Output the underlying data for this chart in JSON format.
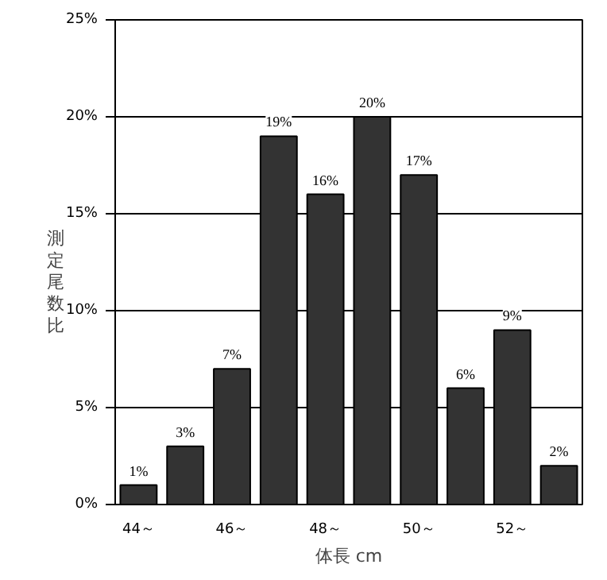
{
  "chart_data": {
    "type": "bar",
    "xlabel": "体長 cm",
    "ylabel": "測定尾数比",
    "categories": [
      "44～",
      null,
      "46～",
      null,
      "48～",
      null,
      "50～",
      null,
      "52～",
      null
    ],
    "values": [
      1,
      3,
      7,
      19,
      16,
      20,
      17,
      6,
      9,
      2
    ],
    "value_labels": [
      "1%",
      "3%",
      "7%",
      "19%",
      "16%",
      "20%",
      "17%",
      "6%",
      "9%",
      "2%"
    ],
    "color": "#333333",
    "ylim": [
      0,
      25
    ],
    "yticks": [
      {
        "value": 0,
        "label": "0%"
      },
      {
        "value": 5,
        "label": "5%"
      },
      {
        "value": 10,
        "label": "10%"
      },
      {
        "value": 15,
        "label": "15%"
      },
      {
        "value": 20,
        "label": "20%"
      },
      {
        "value": 25,
        "label": "25%"
      }
    ],
    "grid": "y"
  }
}
